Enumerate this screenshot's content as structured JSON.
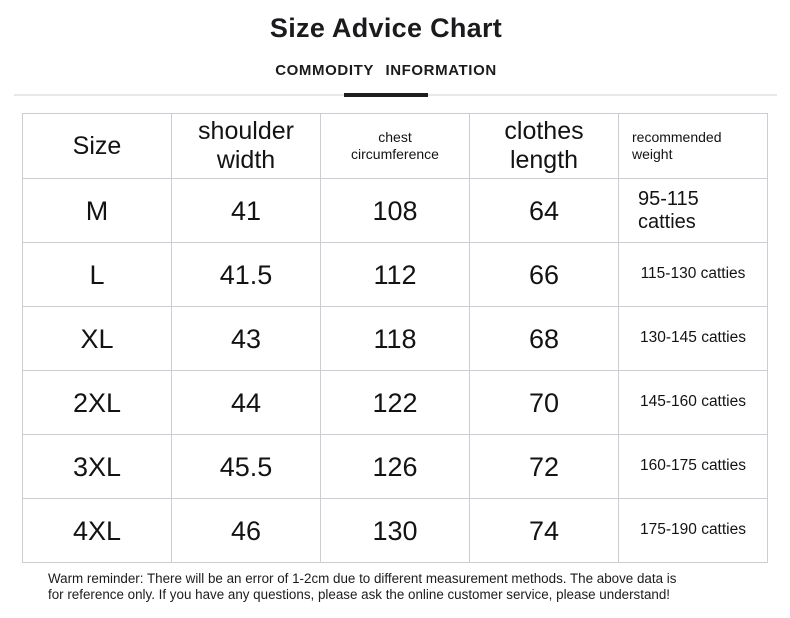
{
  "chart_data": {
    "type": "table",
    "title": "Size Advice Chart",
    "subtitle": "COMMODITY INFORMATION",
    "columns": [
      "Size",
      "shoulder width",
      "chest circumference",
      "clothes length",
      "recommended weight"
    ],
    "column_keys": [
      "size",
      "shoulder-width",
      "chest-circumference",
      "clothes-length",
      "recommended-weight"
    ],
    "rows": [
      [
        "M",
        41,
        108,
        64,
        "95-115 catties"
      ],
      [
        "L",
        41.5,
        112,
        66,
        "115-130 catties"
      ],
      [
        "XL",
        43,
        118,
        68,
        "130-145 catties"
      ],
      [
        "2XL",
        44,
        122,
        70,
        "145-160 catties"
      ],
      [
        "3XL",
        45.5,
        126,
        72,
        "160-175 catties"
      ],
      [
        "4XL",
        46,
        130,
        74,
        "175-190 catties"
      ]
    ]
  },
  "footer": {
    "warning_lines": [
      "Warm reminder: There will be an error of 1-2cm due to different measurement methods. The above data is",
      "for reference only. If you have any questions, please ask the online customer service, please understand!"
    ]
  },
  "colors": {
    "border": "#c9cdd4",
    "text": "#17171a",
    "divider_light": "#e8e8ea",
    "divider_dark": "#1d1d1f",
    "background": "#ffffff"
  }
}
